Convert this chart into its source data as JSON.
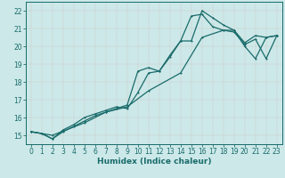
{
  "xlabel": "Humidex (Indice chaleur)",
  "background_color": "#cce8e8",
  "line_color": "#1a6b6b",
  "grid_color": "#b8d8d8",
  "xlim": [
    -0.5,
    23.5
  ],
  "ylim": [
    14.5,
    22.5
  ],
  "xticks": [
    0,
    1,
    2,
    3,
    4,
    5,
    6,
    7,
    8,
    9,
    10,
    11,
    12,
    13,
    14,
    15,
    16,
    17,
    18,
    19,
    20,
    21,
    22,
    23
  ],
  "yticks": [
    15,
    16,
    17,
    18,
    19,
    20,
    21,
    22
  ],
  "line1_x": [
    0,
    1,
    2,
    3,
    4,
    5,
    6,
    7,
    8,
    9,
    10,
    11,
    12,
    13,
    14,
    15,
    16,
    17,
    18,
    19,
    20,
    21,
    22,
    23
  ],
  "line1_y": [
    15.2,
    15.1,
    14.8,
    15.2,
    15.5,
    15.8,
    16.1,
    16.3,
    16.5,
    16.7,
    18.6,
    18.8,
    18.6,
    19.5,
    20.3,
    20.3,
    22.0,
    21.6,
    21.2,
    20.9,
    20.0,
    19.3,
    20.5,
    20.6
  ],
  "line2_x": [
    0,
    1,
    2,
    3,
    4,
    5,
    6,
    7,
    8,
    9,
    10,
    11,
    12,
    13,
    14,
    15,
    16,
    17,
    18,
    19,
    20,
    21,
    22,
    23
  ],
  "line2_y": [
    15.2,
    15.1,
    14.8,
    15.3,
    15.6,
    16.0,
    16.2,
    16.4,
    16.6,
    16.5,
    17.4,
    18.5,
    18.6,
    19.4,
    20.3,
    21.7,
    21.8,
    21.1,
    20.9,
    20.9,
    20.2,
    20.6,
    20.5,
    20.6
  ],
  "line3_x": [
    0,
    2,
    5,
    7,
    9,
    11,
    14,
    16,
    18,
    19,
    20,
    21,
    22,
    23
  ],
  "line3_y": [
    15.2,
    15.0,
    15.7,
    16.3,
    16.6,
    17.5,
    18.5,
    20.5,
    20.9,
    20.8,
    20.1,
    20.4,
    19.3,
    20.6
  ],
  "marker": "D",
  "marker_size": 2.0,
  "linewidth": 0.9
}
